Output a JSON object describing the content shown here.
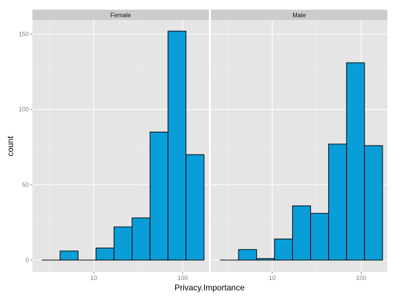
{
  "chart_data": {
    "type": "bar",
    "subtype": "histogram-faceted",
    "xlabel": "Privacy.Importance",
    "ylabel": "count",
    "x_scale": "log10",
    "x_ticks": [
      {
        "value": 10,
        "label": "10"
      },
      {
        "value": 100,
        "label": "100"
      }
    ],
    "y_ticks": [
      {
        "value": 0,
        "label": "0"
      },
      {
        "value": 50,
        "label": "50"
      },
      {
        "value": 100,
        "label": "100"
      },
      {
        "value": 150,
        "label": "150"
      }
    ],
    "ylim": [
      -8,
      160
    ],
    "xlim": [
      2,
      180
    ],
    "grid": true,
    "bin_edges": [
      2.62,
      4.18,
      6.67,
      10.6,
      16.9,
      27.0,
      43.0,
      68.5,
      109.0,
      174.0
    ],
    "facets": [
      {
        "label": "Female",
        "counts": [
          0,
          6,
          0,
          8,
          22,
          28,
          85,
          152,
          70
        ]
      },
      {
        "label": "Male",
        "counts": [
          0,
          7,
          1,
          14,
          36,
          31,
          77,
          131,
          76
        ]
      }
    ],
    "colors": {
      "bar_fill": "#0a9ed9",
      "bar_outline": "#000000",
      "panel_bg": "#e5e5e5",
      "strip_bg": "#cccccc",
      "grid_major": "#ffffff",
      "grid_minor": "#f2f2f2"
    }
  }
}
